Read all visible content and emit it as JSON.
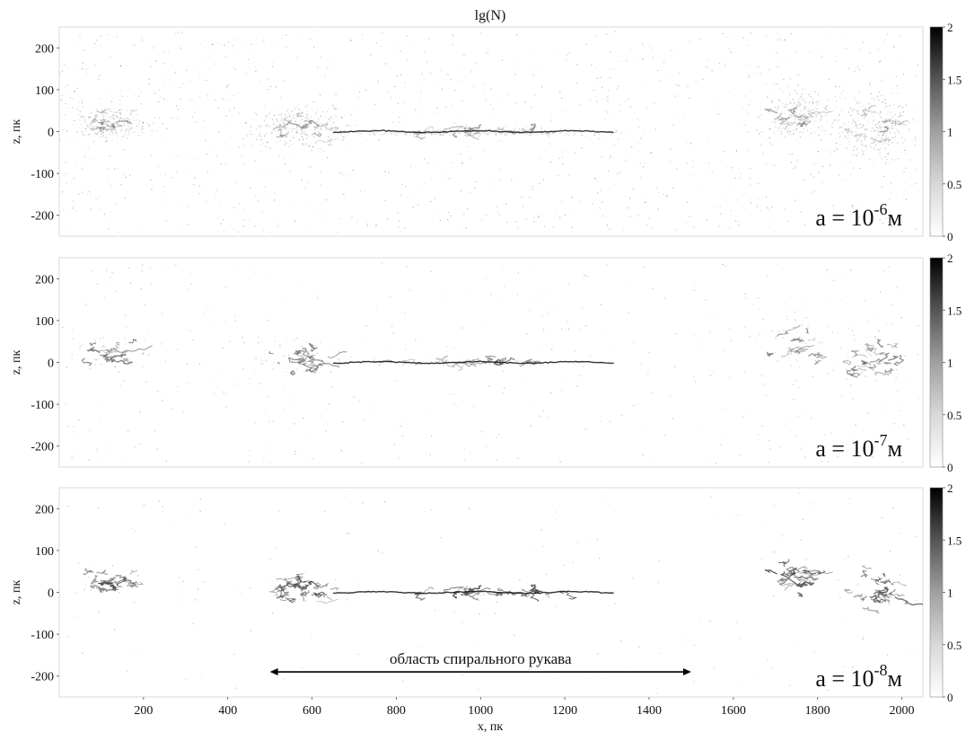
{
  "chart_data": {
    "type": "heatmap",
    "title": "lg(N)",
    "xlabel": "x, пк",
    "ylabel": "z, пк",
    "xlim": [
      0,
      2050
    ],
    "ylim": [
      -250,
      250
    ],
    "x_ticks": [
      200,
      400,
      600,
      800,
      1000,
      1200,
      1400,
      1600,
      1800,
      2000
    ],
    "y_ticks": [
      200,
      100,
      0,
      -100,
      -200
    ],
    "colorbar": {
      "range": [
        0,
        2
      ],
      "ticks": [
        "2",
        "1.5",
        "1",
        "0.5",
        "0"
      ],
      "colormap": "white-to-black"
    },
    "panels": [
      {
        "label_prefix": "a = 10",
        "exponent": "-6",
        "unit": "м",
        "density": "high"
      },
      {
        "label_prefix": "a = 10",
        "exponent": "-7",
        "unit": "м",
        "density": "medium"
      },
      {
        "label_prefix": "a = 10",
        "exponent": "-8",
        "unit": "м",
        "density": "low"
      }
    ],
    "annotation": {
      "text": "область спирального рукава",
      "x_range": [
        500,
        1500
      ],
      "z": -190
    }
  }
}
